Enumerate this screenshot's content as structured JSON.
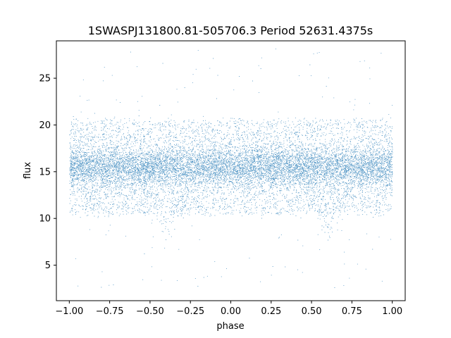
{
  "chart_data": {
    "type": "scatter",
    "title": "1SWASPJ131800.81-505706.3 Period 52631.4375s",
    "xlabel": "phase",
    "ylabel": "flux",
    "xlim": [
      -1.08,
      1.08
    ],
    "ylim": [
      1.2,
      29.0
    ],
    "x_ticks": [
      -1.0,
      -0.75,
      -0.5,
      -0.25,
      0.0,
      0.25,
      0.5,
      0.75,
      1.0
    ],
    "x_tick_labels": [
      "−1.00",
      "−0.75",
      "−0.50",
      "−0.25",
      "0.00",
      "0.25",
      "0.50",
      "0.75",
      "1.00"
    ],
    "y_ticks": [
      5,
      10,
      15,
      20,
      25
    ],
    "y_tick_labels": [
      "5",
      "10",
      "15",
      "20",
      "25"
    ],
    "grid": false,
    "series": [
      {
        "name": "",
        "color": "#1f77b4",
        "description_points": {
          "phase_range": [
            -1.0,
            1.0
          ],
          "baseline_flux": 15.5,
          "core_band": [
            13.5,
            17.5
          ],
          "outer_band": [
            11.5,
            21.5
          ],
          "eclipse_centers": [
            -0.4,
            0.6
          ],
          "eclipse_min_flux": 9.0,
          "eclipse_half_width": 0.2,
          "outlier_range": [
            2.5,
            28.2
          ]
        }
      }
    ]
  }
}
